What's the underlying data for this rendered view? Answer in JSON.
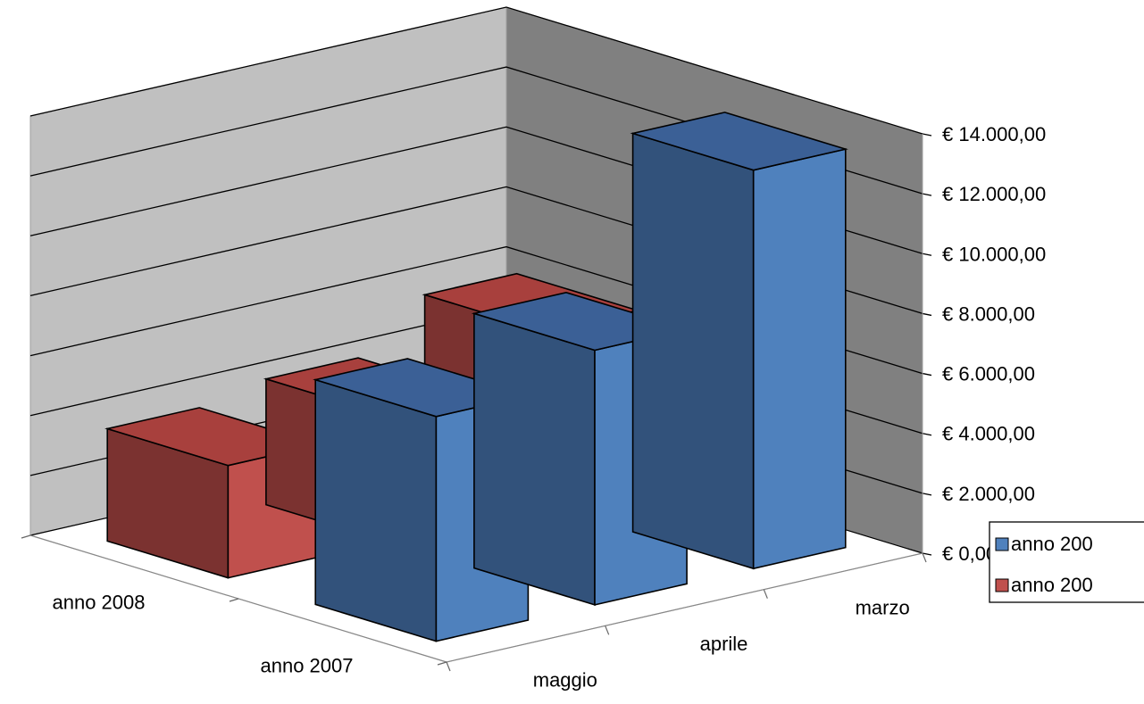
{
  "chart_data": {
    "type": "bar",
    "variant": "3d-column",
    "value_axis": {
      "min": 0,
      "max": 14000,
      "step": 2000,
      "tick_labels": [
        "€ 0,00",
        "€ 2.000,00",
        "€ 4.000,00",
        "€ 6.000,00",
        "€ 8.000,00",
        "€ 10.000,00",
        "€ 12.000,00",
        "€ 14.000,00"
      ],
      "gridlines": true
    },
    "categories": [
      "maggio",
      "aprile",
      "marzo"
    ],
    "depth_categories": [
      "anno 2007",
      "anno 2008"
    ],
    "series": [
      {
        "name": "anno 2007",
        "legend_text": "anno 200",
        "color": "#4F81BD",
        "values": [
          7500,
          8500,
          13300
        ]
      },
      {
        "name": "anno 2008",
        "legend_text": "anno 200",
        "color": "#C0504D",
        "values": [
          3750,
          4200,
          5800
        ]
      }
    ],
    "legend_position": "right",
    "wall_colors": {
      "back": "#c0c0c0",
      "side": "#808080"
    }
  }
}
